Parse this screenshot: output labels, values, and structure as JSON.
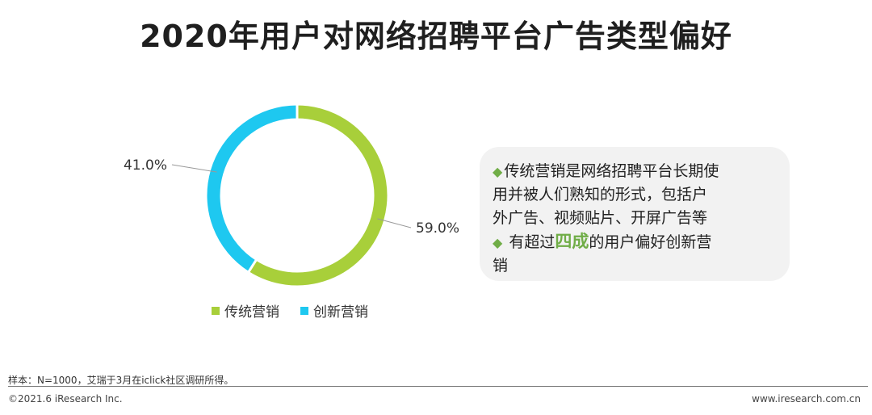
{
  "title": "2020年用户对网络招聘平台广告类型偏好",
  "chart_data": {
    "type": "pie",
    "categories": [
      "传统营销",
      "创新营销"
    ],
    "values": [
      59.0,
      41.0
    ],
    "value_labels": [
      "59.0%",
      "41.0%"
    ],
    "colors": [
      "#a8cf3a",
      "#1ec8f0"
    ],
    "donut": true,
    "legend_position": "bottom"
  },
  "note": {
    "bullet_1": [
      "传统营销是网络招聘平台长期使",
      "用并被人们熟知的形式，包括户",
      "外广告、视频贴片、开屏广告等"
    ],
    "bullet_2_prefix": " 有超过",
    "bullet_2_highlight": "四成",
    "bullet_2_suffix": "的用户偏好创新营",
    "bullet_2_line2": "销",
    "bullet_symbol": "◆"
  },
  "footer": {
    "sample": "样本：N=1000，艾瑞于3月在iclick社区调研所得。",
    "copyright": "©2021.6 iResearch Inc.",
    "url": "www.iresearch.com.cn"
  }
}
